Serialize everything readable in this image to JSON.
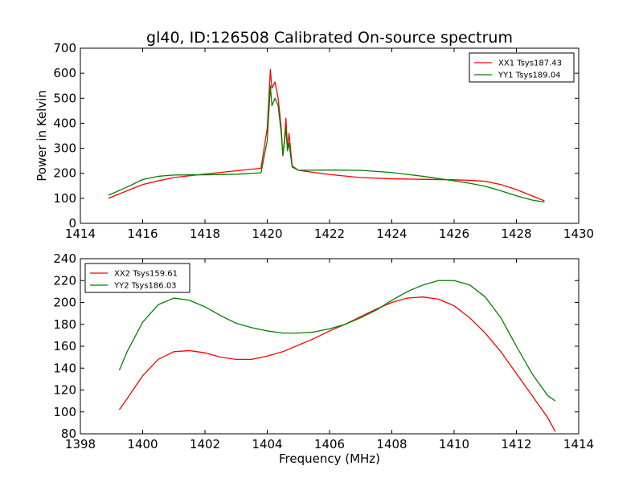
{
  "figure": {
    "title": "gl40, ID:126508 Calibrated On-source spectrum",
    "xlabel": "Frequency (MHz)",
    "ylabel": "Power in Kelvin"
  },
  "chart_data": [
    {
      "type": "line",
      "title": "gl40, ID:126508 Calibrated On-source spectrum",
      "xlabel": "",
      "ylabel": "Power in Kelvin",
      "xlim": [
        1414,
        1430
      ],
      "ylim": [
        0,
        700
      ],
      "xticks": [
        1414,
        1416,
        1418,
        1420,
        1422,
        1424,
        1426,
        1428,
        1430
      ],
      "yticks": [
        0,
        100,
        200,
        300,
        400,
        500,
        600,
        700
      ],
      "legend": "top-right",
      "grid": false,
      "series": [
        {
          "name": "XX1 Tsys187.43",
          "color": "#ff0000",
          "x": [
            1414.9,
            1415.5,
            1416,
            1416.5,
            1417,
            1418,
            1419,
            1419.8,
            1420.0,
            1420.1,
            1420.15,
            1420.25,
            1420.35,
            1420.45,
            1420.5,
            1420.55,
            1420.6,
            1420.65,
            1420.7,
            1420.8,
            1421,
            1422,
            1423,
            1424,
            1425,
            1426,
            1426.5,
            1427,
            1427.5,
            1428,
            1428.5,
            1428.9
          ],
          "y": [
            100,
            130,
            155,
            170,
            183,
            197,
            210,
            220,
            380,
            615,
            540,
            565,
            500,
            380,
            270,
            330,
            420,
            300,
            360,
            230,
            212,
            195,
            183,
            178,
            176,
            174,
            172,
            168,
            155,
            135,
            110,
            90
          ]
        },
        {
          "name": "YY1 Tsys189.04",
          "color": "#008000",
          "x": [
            1414.9,
            1415.5,
            1416,
            1416.5,
            1417,
            1418,
            1419,
            1419.8,
            1420.0,
            1420.1,
            1420.15,
            1420.25,
            1420.35,
            1420.45,
            1420.5,
            1420.55,
            1420.6,
            1420.65,
            1420.7,
            1420.8,
            1421,
            1422,
            1423,
            1424,
            1425,
            1426,
            1426.5,
            1427,
            1427.5,
            1428,
            1428.5,
            1428.9
          ],
          "y": [
            112,
            145,
            175,
            188,
            193,
            194,
            196,
            202,
            330,
            550,
            470,
            500,
            470,
            360,
            275,
            320,
            380,
            290,
            320,
            225,
            212,
            213,
            212,
            203,
            188,
            170,
            160,
            148,
            130,
            110,
            93,
            85
          ]
        }
      ]
    },
    {
      "type": "line",
      "title": "",
      "xlabel": "Frequency (MHz)",
      "ylabel": "",
      "xlim": [
        1398,
        1414
      ],
      "ylim": [
        80,
        240
      ],
      "xticks": [
        1398,
        1400,
        1402,
        1404,
        1406,
        1408,
        1410,
        1412,
        1414
      ],
      "yticks": [
        80,
        100,
        120,
        140,
        160,
        180,
        200,
        220,
        240
      ],
      "legend": "top-left",
      "grid": false,
      "series": [
        {
          "name": "XX2 Tsys159.61",
          "color": "#ff0000",
          "x": [
            1399.25,
            1399.5,
            1400,
            1400.5,
            1401,
            1401.5,
            1402,
            1402.5,
            1403,
            1403.5,
            1404,
            1404.5,
            1405,
            1405.5,
            1406,
            1406.5,
            1407,
            1407.5,
            1408,
            1408.5,
            1409,
            1409.5,
            1410,
            1410.5,
            1411,
            1411.5,
            1412,
            1412.5,
            1413,
            1413.25
          ],
          "y": [
            102,
            112,
            133,
            148,
            155,
            156,
            154,
            150,
            148,
            148,
            151,
            155,
            161,
            167,
            174,
            180,
            187,
            194,
            200,
            204,
            205,
            203,
            197,
            186,
            172,
            155,
            135,
            115,
            95,
            82
          ]
        },
        {
          "name": "YY2 Tsys186.03",
          "color": "#008000",
          "x": [
            1399.25,
            1399.5,
            1400,
            1400.5,
            1401,
            1401.5,
            1402,
            1402.5,
            1403,
            1403.5,
            1404,
            1404.5,
            1405,
            1405.5,
            1406,
            1406.5,
            1407,
            1407.5,
            1408,
            1408.5,
            1409,
            1409.5,
            1410,
            1410.5,
            1411,
            1411.5,
            1412,
            1412.5,
            1413,
            1413.25
          ],
          "y": [
            138,
            155,
            182,
            198,
            204,
            202,
            196,
            188,
            181,
            177,
            174,
            172,
            172,
            173,
            176,
            180,
            186,
            193,
            202,
            210,
            216,
            220,
            220,
            216,
            205,
            186,
            160,
            135,
            115,
            110
          ]
        }
      ]
    }
  ]
}
